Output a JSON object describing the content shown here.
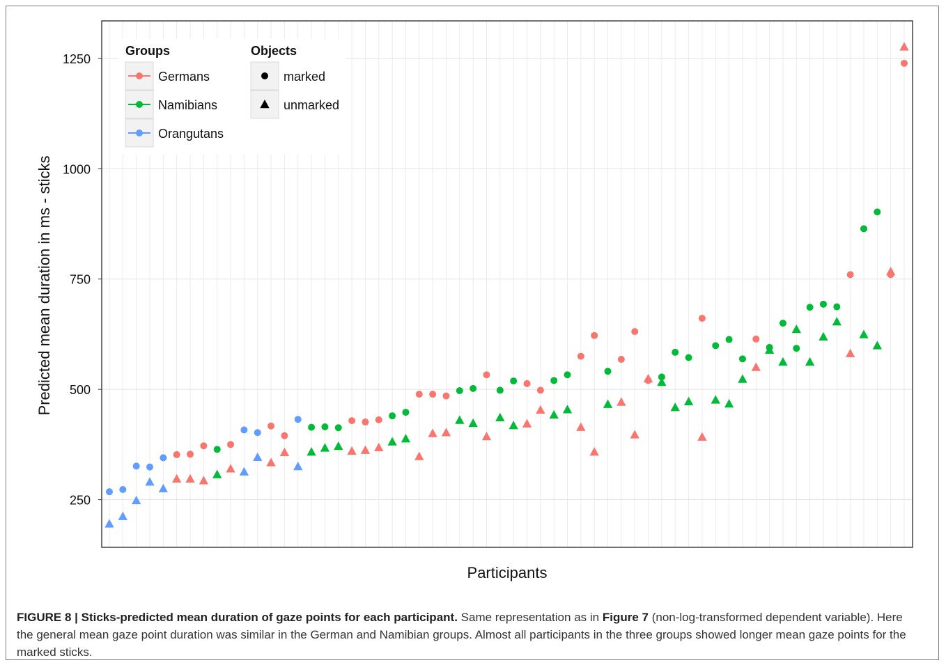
{
  "caption": {
    "label": "FIGURE 8 | Sticks-predicted mean duration of gaze points for each participant.",
    "text_before_ref": "Same representation as in",
    "ref": "Figure 7",
    "text_after_ref": "(non-log-transformed dependent variable). Here the general mean gaze point duration was similar in the German and Namibian groups. Almost all participants in the three groups showed longer mean gaze points for the marked sticks."
  },
  "chart_data": {
    "type": "scatter",
    "xlabel": "Participants",
    "ylabel": "Predicted mean duration in ms - sticks",
    "ylim": [
      142,
      1335
    ],
    "yticks": [
      250,
      500,
      750,
      1000,
      1250
    ],
    "grid": true,
    "x_ticks_shown": false,
    "legend": {
      "placement": "top-left",
      "groups_title": "Groups",
      "objects_title": "Objects",
      "groups": [
        {
          "name": "Germans",
          "color": "#f8766d"
        },
        {
          "name": "Namibians",
          "color": "#00ba38"
        },
        {
          "name": "Orangutans",
          "color": "#619cff"
        }
      ],
      "objects": [
        {
          "name": "marked",
          "shape": "circle"
        },
        {
          "name": "unmarked",
          "shape": "triangle"
        }
      ]
    },
    "participants": [
      {
        "x": 1,
        "group": "Orangutans",
        "marked": 268,
        "unmarked": 195
      },
      {
        "x": 2,
        "group": "Orangutans",
        "marked": 273,
        "unmarked": 212
      },
      {
        "x": 3,
        "group": "Orangutans",
        "marked": 326,
        "unmarked": 248
      },
      {
        "x": 4,
        "group": "Orangutans",
        "marked": 324,
        "unmarked": 290
      },
      {
        "x": 5,
        "group": "Orangutans",
        "marked": 345,
        "unmarked": 275
      },
      {
        "x": 6,
        "group": "Germans",
        "marked": 352,
        "unmarked": 297
      },
      {
        "x": 7,
        "group": "Germans",
        "marked": 353,
        "unmarked": 297
      },
      {
        "x": 8,
        "group": "Germans",
        "marked": 372,
        "unmarked": 293
      },
      {
        "x": 9,
        "group": "Namibians",
        "marked": 364,
        "unmarked": 307
      },
      {
        "x": 10,
        "group": "Germans",
        "marked": 375,
        "unmarked": 320
      },
      {
        "x": 11,
        "group": "Orangutans",
        "marked": 408,
        "unmarked": 313
      },
      {
        "x": 12,
        "group": "Orangutans",
        "marked": 402,
        "unmarked": 346
      },
      {
        "x": 13,
        "group": "Germans",
        "marked": 417,
        "unmarked": 334
      },
      {
        "x": 14,
        "group": "Germans",
        "marked": 395,
        "unmarked": 357
      },
      {
        "x": 15,
        "group": "Orangutans",
        "marked": 432,
        "unmarked": 325
      },
      {
        "x": 16,
        "group": "Namibians",
        "marked": 414,
        "unmarked": 358
      },
      {
        "x": 17,
        "group": "Namibians",
        "marked": 415,
        "unmarked": 367
      },
      {
        "x": 18,
        "group": "Namibians",
        "marked": 413,
        "unmarked": 371
      },
      {
        "x": 19,
        "group": "Germans",
        "marked": 429,
        "unmarked": 360
      },
      {
        "x": 20,
        "group": "Germans",
        "marked": 426,
        "unmarked": 362
      },
      {
        "x": 21,
        "group": "Germans",
        "marked": 431,
        "unmarked": 368
      },
      {
        "x": 22,
        "group": "Namibians",
        "marked": 440,
        "unmarked": 381
      },
      {
        "x": 23,
        "group": "Namibians",
        "marked": 448,
        "unmarked": 388
      },
      {
        "x": 24,
        "group": "Germans",
        "marked": 489,
        "unmarked": 348
      },
      {
        "x": 25,
        "group": "Germans",
        "marked": 489,
        "unmarked": 400
      },
      {
        "x": 26,
        "group": "Germans",
        "marked": 485,
        "unmarked": 402
      },
      {
        "x": 27,
        "group": "Namibians",
        "marked": 497,
        "unmarked": 430
      },
      {
        "x": 28,
        "group": "Namibians",
        "marked": 502,
        "unmarked": 423
      },
      {
        "x": 29,
        "group": "Germans",
        "marked": 533,
        "unmarked": 393
      },
      {
        "x": 30,
        "group": "Namibians",
        "marked": 498,
        "unmarked": 436
      },
      {
        "x": 31,
        "group": "Namibians",
        "marked": 519,
        "unmarked": 418
      },
      {
        "x": 32,
        "group": "Germans",
        "marked": 513,
        "unmarked": 422
      },
      {
        "x": 33,
        "group": "Germans",
        "marked": 498,
        "unmarked": 453
      },
      {
        "x": 34,
        "group": "Namibians",
        "marked": 520,
        "unmarked": 442
      },
      {
        "x": 35,
        "group": "Namibians",
        "marked": 533,
        "unmarked": 454
      },
      {
        "x": 36,
        "group": "Germans",
        "marked": 575,
        "unmarked": 414
      },
      {
        "x": 37,
        "group": "Germans",
        "marked": 622,
        "unmarked": 358
      },
      {
        "x": 38,
        "group": "Namibians",
        "marked": 541,
        "unmarked": 466
      },
      {
        "x": 39,
        "group": "Germans",
        "marked": 568,
        "unmarked": 471
      },
      {
        "x": 40,
        "group": "Germans",
        "marked": 631,
        "unmarked": 397
      },
      {
        "x": 41,
        "group": "Germans",
        "marked": 520,
        "unmarked": 524
      },
      {
        "x": 42,
        "group": "Namibians",
        "marked": 528,
        "unmarked": 516
      },
      {
        "x": 43,
        "group": "Namibians",
        "marked": 584,
        "unmarked": 459
      },
      {
        "x": 44,
        "group": "Namibians",
        "marked": 572,
        "unmarked": 472
      },
      {
        "x": 45,
        "group": "Germans",
        "marked": 661,
        "unmarked": 392
      },
      {
        "x": 46,
        "group": "Namibians",
        "marked": 599,
        "unmarked": 476
      },
      {
        "x": 47,
        "group": "Namibians",
        "marked": 613,
        "unmarked": 467
      },
      {
        "x": 48,
        "group": "Namibians",
        "marked": 569,
        "unmarked": 523
      },
      {
        "x": 49,
        "group": "Germans",
        "marked": 614,
        "unmarked": 550
      },
      {
        "x": 50,
        "group": "Namibians",
        "marked": 595,
        "unmarked": 589
      },
      {
        "x": 51,
        "group": "Namibians",
        "marked": 650,
        "unmarked": 562
      },
      {
        "x": 52,
        "group": "Namibians",
        "marked": 593,
        "unmarked": 636
      },
      {
        "x": 53,
        "group": "Namibians",
        "marked": 686,
        "unmarked": 562
      },
      {
        "x": 54,
        "group": "Namibians",
        "marked": 693,
        "unmarked": 619
      },
      {
        "x": 55,
        "group": "Namibians",
        "marked": 687,
        "unmarked": 653
      },
      {
        "x": 56,
        "group": "Germans",
        "marked": 760,
        "unmarked": 581
      },
      {
        "x": 57,
        "group": "Namibians",
        "marked": 864,
        "unmarked": 624
      },
      {
        "x": 58,
        "group": "Namibians",
        "marked": 902,
        "unmarked": 599
      },
      {
        "x": 59,
        "group": "Germans",
        "marked": 760,
        "unmarked": 767
      },
      {
        "x": 60,
        "group": "Germans",
        "marked": 1239,
        "unmarked": 1276
      }
    ]
  }
}
